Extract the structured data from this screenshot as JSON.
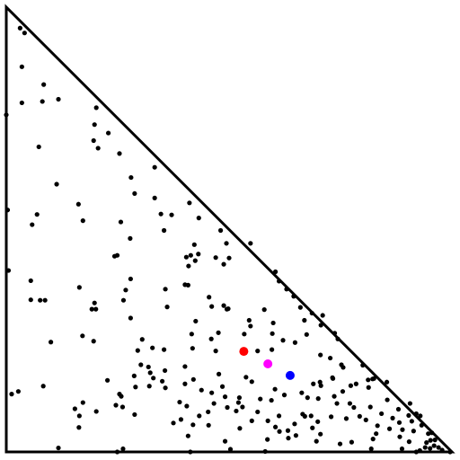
{
  "chart_data": {
    "type": "scatter",
    "title": "",
    "xlabel": "",
    "ylabel": "",
    "xlim": [
      0,
      1
    ],
    "ylim": [
      0,
      1
    ],
    "grid": false,
    "legend": "none",
    "boundary": "triangle",
    "boundary_color": "#000000",
    "series": [
      {
        "color": "#000000",
        "points": [
          [
            0.031,
            0.953
          ],
          [
            0.041,
            0.942
          ],
          [
            0.035,
            0.866
          ],
          [
            0.084,
            0.826
          ],
          [
            0.081,
            0.788
          ],
          [
            0.035,
            0.785
          ],
          [
            0.117,
            0.793
          ],
          [
            0.0,
            0.758
          ],
          [
            0.202,
            0.774
          ],
          [
            0.198,
            0.736
          ],
          [
            0.229,
            0.717
          ],
          [
            0.196,
            0.7
          ],
          [
            0.073,
            0.686
          ],
          [
            0.254,
            0.671
          ],
          [
            0.206,
            0.683
          ],
          [
            0.333,
            0.64
          ],
          [
            0.113,
            0.602
          ],
          [
            0.28,
            0.617
          ],
          [
            0.288,
            0.581
          ],
          [
            0.003,
            0.544
          ],
          [
            0.069,
            0.534
          ],
          [
            0.058,
            0.511
          ],
          [
            0.162,
            0.557
          ],
          [
            0.172,
            0.52
          ],
          [
            0.257,
            0.517
          ],
          [
            0.333,
            0.571
          ],
          [
            0.347,
            0.535
          ],
          [
            0.371,
            0.533
          ],
          [
            0.411,
            0.56
          ],
          [
            0.432,
            0.526
          ],
          [
            0.278,
            0.48
          ],
          [
            0.354,
            0.498
          ],
          [
            0.481,
            0.498
          ],
          [
            0.494,
            0.469
          ],
          [
            0.422,
            0.466
          ],
          [
            0.548,
            0.469
          ],
          [
            0.243,
            0.44
          ],
          [
            0.249,
            0.442
          ],
          [
            0.404,
            0.438
          ],
          [
            0.414,
            0.442
          ],
          [
            0.431,
            0.445
          ],
          [
            0.47,
            0.437
          ],
          [
            0.5,
            0.436
          ],
          [
            0.488,
            0.422
          ],
          [
            0.279,
            0.389
          ],
          [
            0.424,
            0.43
          ],
          [
            0.409,
            0.418
          ],
          [
            0.604,
            0.405
          ],
          [
            0.005,
            0.408
          ],
          [
            0.055,
            0.385
          ],
          [
            0.164,
            0.37
          ],
          [
            0.055,
            0.342
          ],
          [
            0.076,
            0.341
          ],
          [
            0.087,
            0.341
          ],
          [
            0.268,
            0.364
          ],
          [
            0.198,
            0.335
          ],
          [
            0.263,
            0.341
          ],
          [
            0.357,
            0.366
          ],
          [
            0.401,
            0.376
          ],
          [
            0.192,
            0.321
          ],
          [
            0.201,
            0.321
          ],
          [
            0.361,
            0.326
          ],
          [
            0.408,
            0.375
          ],
          [
            0.455,
            0.348
          ],
          [
            0.461,
            0.327
          ],
          [
            0.495,
            0.321
          ],
          [
            0.612,
            0.384
          ],
          [
            0.629,
            0.366
          ],
          [
            0.645,
            0.35
          ],
          [
            0.66,
            0.325
          ],
          [
            0.686,
            0.312
          ],
          [
            0.71,
            0.307
          ],
          [
            0.706,
            0.285
          ],
          [
            0.737,
            0.267
          ],
          [
            0.744,
            0.254
          ],
          [
            0.488,
            0.329
          ],
          [
            0.498,
            0.322
          ],
          [
            0.579,
            0.32
          ],
          [
            0.599,
            0.29
          ],
          [
            0.545,
            0.296
          ],
          [
            0.548,
            0.283
          ],
          [
            0.669,
            0.296
          ],
          [
            0.674,
            0.264
          ],
          [
            0.648,
            0.246
          ],
          [
            0.279,
            0.301
          ],
          [
            0.171,
            0.261
          ],
          [
            0.196,
            0.249
          ],
          [
            0.305,
            0.253
          ],
          [
            0.425,
            0.294
          ],
          [
            0.416,
            0.265
          ],
          [
            0.46,
            0.254
          ],
          [
            0.476,
            0.268
          ],
          [
            0.534,
            0.265
          ],
          [
            0.597,
            0.266
          ],
          [
            0.621,
            0.251
          ],
          [
            0.1,
            0.247
          ],
          [
            0.295,
            0.228
          ],
          [
            0.328,
            0.234
          ],
          [
            0.354,
            0.23
          ],
          [
            0.418,
            0.233
          ],
          [
            0.47,
            0.227
          ],
          [
            0.596,
            0.23
          ],
          [
            0.564,
            0.227
          ],
          [
            0.302,
            0.196
          ],
          [
            0.319,
            0.191
          ],
          [
            0.323,
            0.178
          ],
          [
            0.287,
            0.171
          ],
          [
            0.33,
            0.166
          ],
          [
            0.401,
            0.192
          ],
          [
            0.477,
            0.175
          ],
          [
            0.538,
            0.168
          ],
          [
            0.705,
            0.218
          ],
          [
            0.727,
            0.211
          ],
          [
            0.752,
            0.196
          ],
          [
            0.756,
            0.19
          ],
          [
            0.8,
            0.195
          ],
          [
            0.825,
            0.165
          ],
          [
            0.854,
            0.157
          ],
          [
            0.822,
            0.164
          ],
          [
            0.813,
            0.145
          ],
          [
            0.773,
            0.149
          ],
          [
            0.755,
            0.136
          ],
          [
            0.733,
            0.165
          ],
          [
            0.706,
            0.149
          ],
          [
            0.704,
            0.157
          ],
          [
            0.689,
            0.153
          ],
          [
            0.732,
            0.167
          ],
          [
            0.227,
            0.161
          ],
          [
            0.29,
            0.146
          ],
          [
            0.321,
            0.148
          ],
          [
            0.258,
            0.125
          ],
          [
            0.357,
            0.144
          ],
          [
            0.389,
            0.112
          ],
          [
            0.405,
            0.103
          ],
          [
            0.466,
            0.109
          ],
          [
            0.491,
            0.124
          ],
          [
            0.521,
            0.111
          ],
          [
            0.53,
            0.101
          ],
          [
            0.57,
            0.119
          ],
          [
            0.595,
            0.116
          ],
          [
            0.027,
            0.136
          ],
          [
            0.012,
            0.13
          ],
          [
            0.083,
            0.148
          ],
          [
            0.254,
            0.13
          ],
          [
            0.172,
            0.111
          ],
          [
            0.202,
            0.091
          ],
          [
            0.246,
            0.105
          ],
          [
            0.261,
            0.101
          ],
          [
            0.453,
            0.09
          ],
          [
            0.496,
            0.1
          ],
          [
            0.516,
            0.092
          ],
          [
            0.564,
            0.09
          ],
          [
            0.587,
            0.07
          ],
          [
            0.604,
            0.056
          ],
          [
            0.613,
            0.046
          ],
          [
            0.632,
            0.048
          ],
          [
            0.647,
            0.063
          ],
          [
            0.67,
            0.08
          ],
          [
            0.684,
            0.081
          ],
          [
            0.699,
            0.068
          ],
          [
            0.687,
            0.054
          ],
          [
            0.729,
            0.079
          ],
          [
            0.763,
            0.075
          ],
          [
            0.78,
            0.1
          ],
          [
            0.771,
            0.109
          ],
          [
            0.793,
            0.08
          ],
          [
            0.807,
            0.072
          ],
          [
            0.817,
            0.101
          ],
          [
            0.855,
            0.117
          ],
          [
            0.88,
            0.096
          ],
          [
            0.906,
            0.109
          ],
          [
            0.92,
            0.086
          ],
          [
            0.929,
            0.081
          ],
          [
            0.932,
            0.06
          ],
          [
            0.947,
            0.041
          ],
          [
            0.952,
            0.026
          ],
          [
            0.962,
            0.027
          ],
          [
            0.96,
            0.014
          ],
          [
            0.97,
            0.01
          ],
          [
            0.978,
            0.004
          ],
          [
            0.996,
            0.0
          ],
          [
            0.914,
            0.047
          ],
          [
            0.904,
            0.023
          ],
          [
            0.888,
            0.007
          ],
          [
            0.928,
            0.003
          ],
          [
            0.92,
            0.0
          ],
          [
            0.951,
            0.008
          ],
          [
            0.943,
            0.021
          ],
          [
            0.883,
            0.034
          ],
          [
            0.86,
            0.052
          ],
          [
            0.83,
            0.041
          ],
          [
            0.823,
            0.029
          ],
          [
            0.819,
            0.007
          ],
          [
            0.775,
            0.022
          ],
          [
            0.749,
            0.018
          ],
          [
            0.705,
            0.04
          ],
          [
            0.696,
            0.024
          ],
          [
            0.65,
            0.037
          ],
          [
            0.633,
            0.031
          ],
          [
            0.586,
            0.028
          ],
          [
            0.581,
            0.001
          ],
          [
            0.503,
            0.006
          ],
          [
            0.413,
            0.0
          ],
          [
            0.408,
            0.036
          ],
          [
            0.419,
            0.061
          ],
          [
            0.454,
            0.06
          ],
          [
            0.433,
            0.081
          ],
          [
            0.392,
            0.073
          ],
          [
            0.375,
            0.065
          ],
          [
            0.288,
            0.084
          ],
          [
            0.262,
            0.007
          ],
          [
            0.154,
            0.097
          ],
          [
            0.164,
            0.081
          ],
          [
            0.163,
            0.055
          ],
          [
            0.117,
            0.009
          ],
          [
            0.249,
            0.0
          ],
          [
            0.491,
            0.024
          ],
          [
            0.524,
            0.053
          ],
          [
            0.551,
            0.07
          ],
          [
            0.612,
            0.081
          ],
          [
            0.665,
            0.085
          ],
          [
            0.736,
            0.125
          ],
          [
            0.676,
            0.122
          ],
          [
            0.663,
            0.133
          ],
          [
            0.7,
            0.12
          ],
          [
            0.742,
            0.109
          ],
          [
            0.785,
            0.153
          ],
          [
            0.812,
            0.162
          ],
          [
            0.842,
            0.086
          ],
          [
            0.833,
            0.059
          ],
          [
            0.867,
            0.076
          ],
          [
            0.882,
            0.066
          ],
          [
            0.889,
            0.05
          ],
          [
            0.903,
            0.082
          ],
          [
            0.91,
            0.069
          ],
          [
            0.94,
            0.01
          ],
          [
            0.955,
            0.043
          ],
          [
            0.485,
            0.147
          ],
          [
            0.461,
            0.133
          ],
          [
            0.438,
            0.139
          ],
          [
            0.42,
            0.163
          ],
          [
            0.401,
            0.153
          ],
          [
            0.356,
            0.183
          ],
          [
            0.35,
            0.159
          ],
          [
            0.523,
            0.122
          ],
          [
            0.551,
            0.158
          ],
          [
            0.603,
            0.141
          ],
          [
            0.624,
            0.128
          ]
        ]
      }
    ],
    "highlighted_points": [
      {
        "color": "#ff0000",
        "x": 0.533,
        "y": 0.226
      },
      {
        "color": "#ff00ff",
        "x": 0.587,
        "y": 0.198
      },
      {
        "color": "#0000ff",
        "x": 0.637,
        "y": 0.172
      }
    ]
  }
}
